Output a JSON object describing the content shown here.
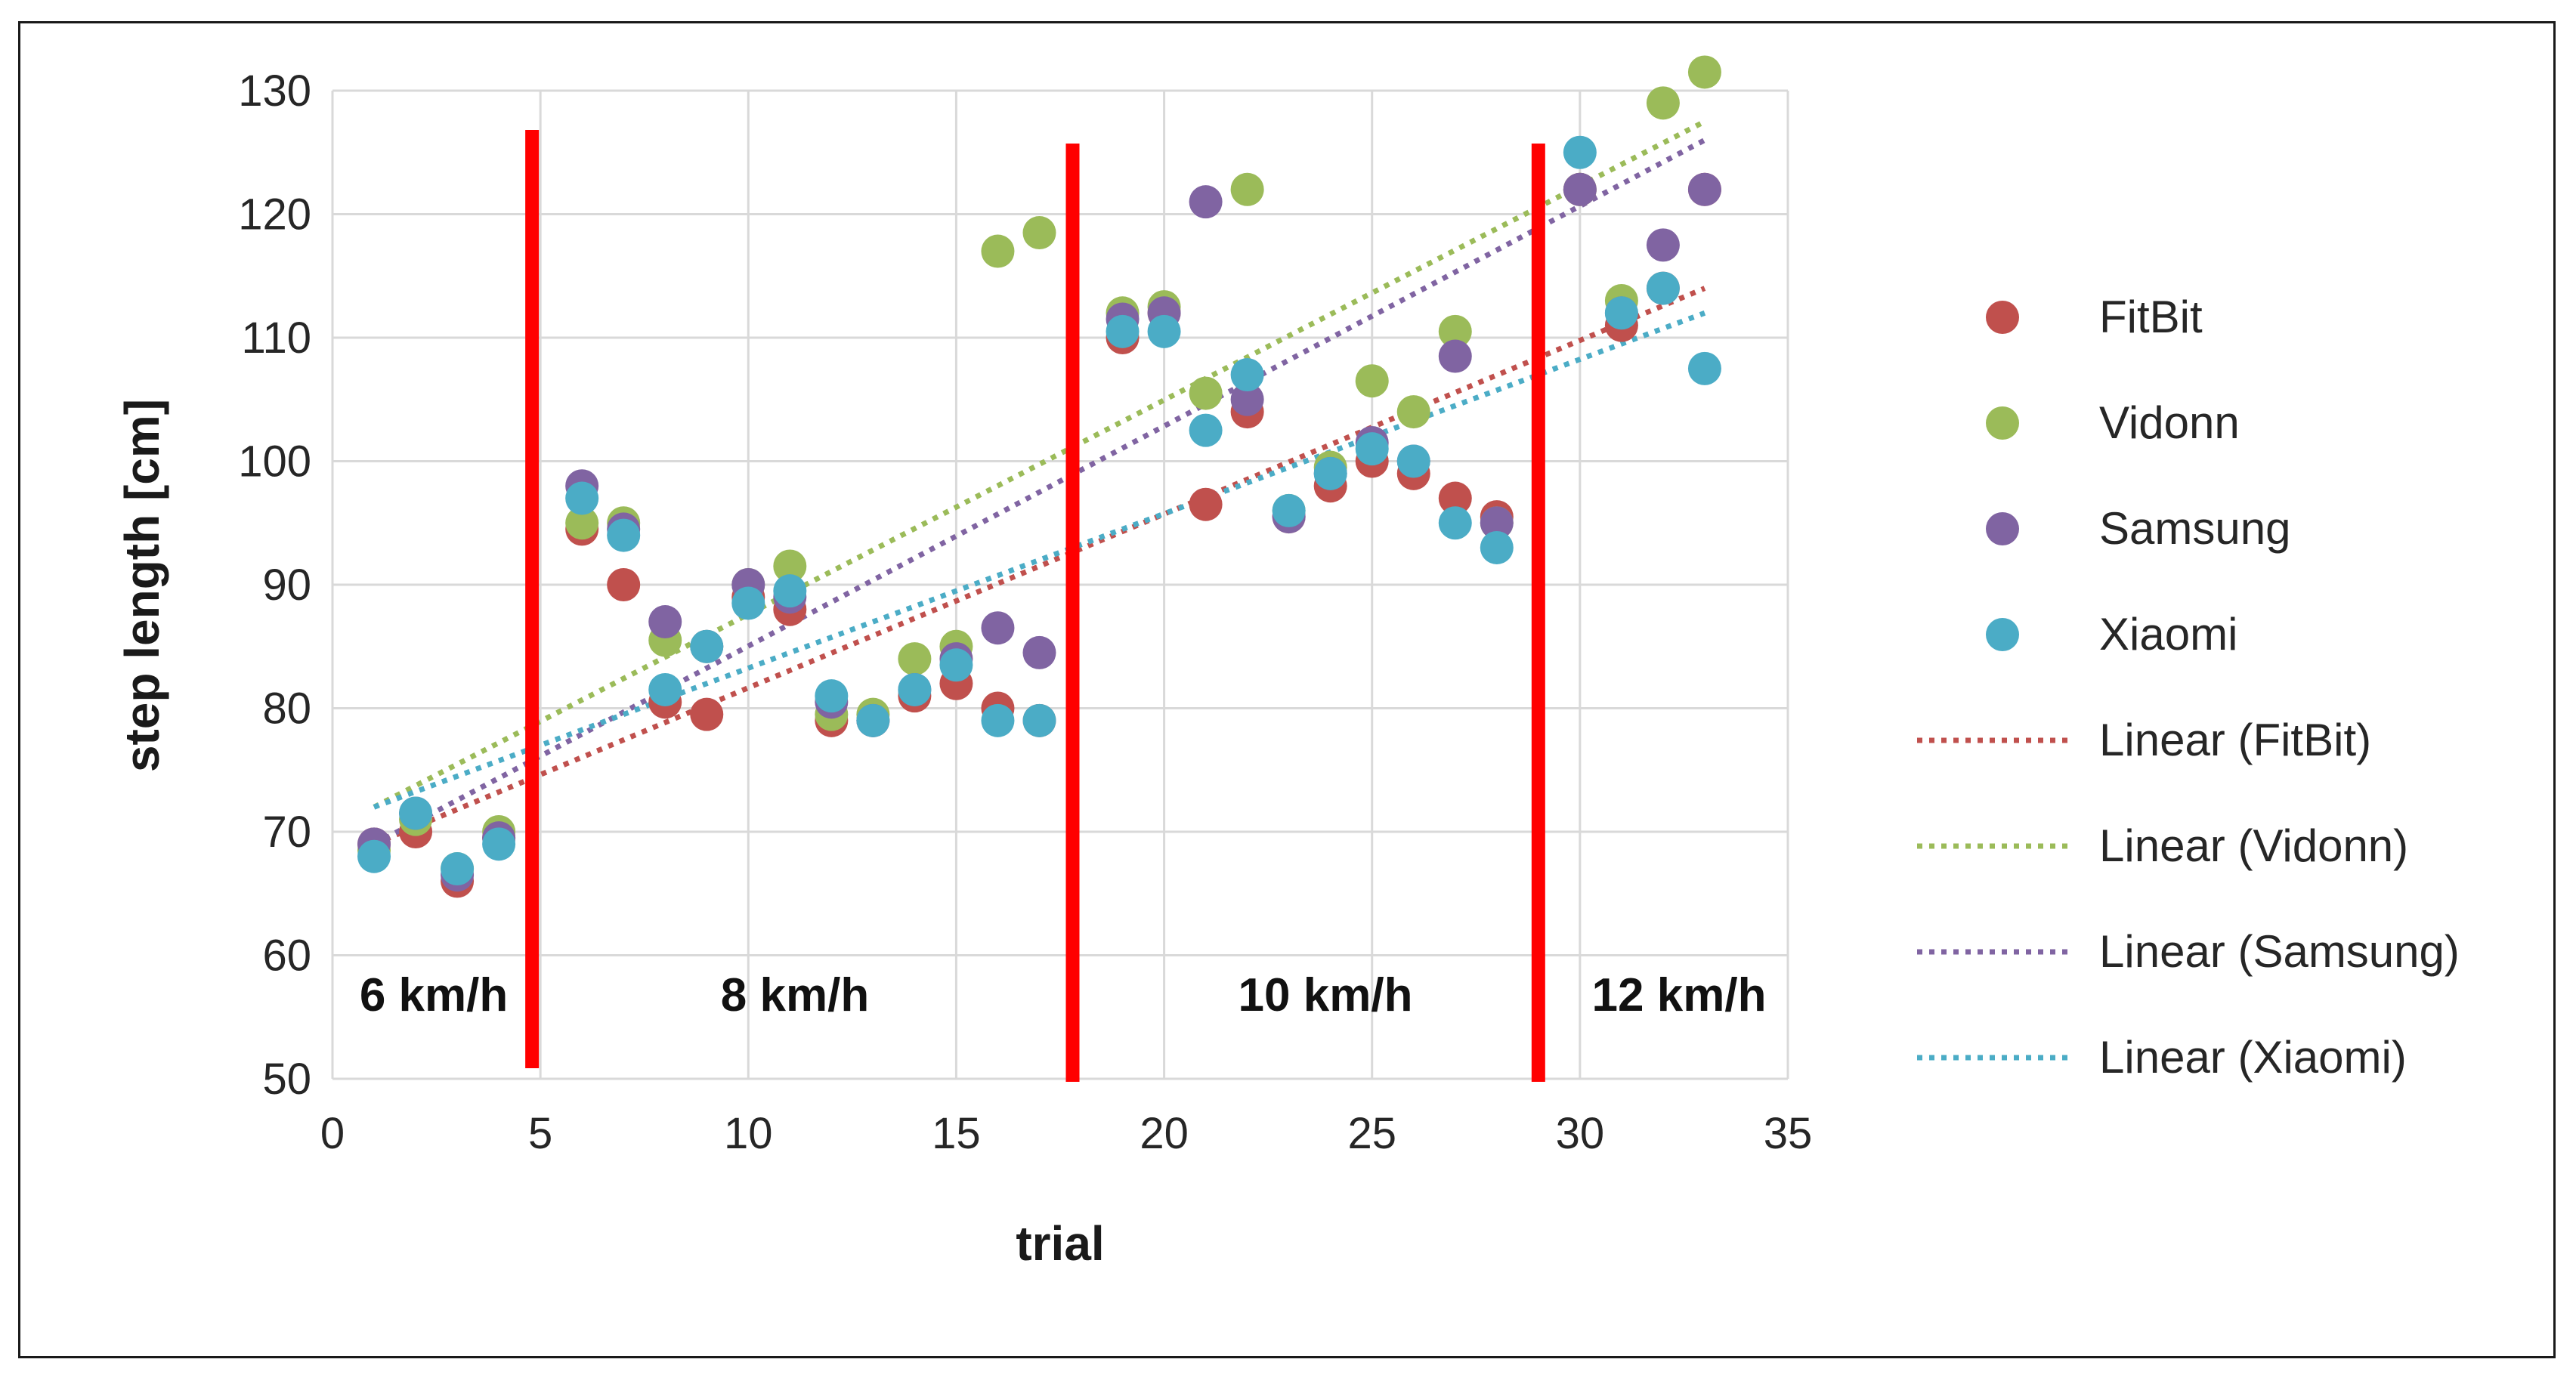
{
  "chart_data": {
    "type": "scatter",
    "xlabel": "trial",
    "ylabel": "step length [cm]",
    "xlim": [
      0,
      35
    ],
    "ylim": [
      50,
      130
    ],
    "xticks": [
      "0",
      "5",
      "10",
      "15",
      "20",
      "25",
      "30",
      "35"
    ],
    "yticks": [
      "50",
      "60",
      "70",
      "80",
      "90",
      "100",
      "110",
      "120",
      "130"
    ],
    "grid": true,
    "legend_position": "right",
    "speed_zones": [
      {
        "label": "6 km/h",
        "x_start": 0,
        "x_end": 4.8
      },
      {
        "label": "8 km/h",
        "x_start": 4.8,
        "x_end": 17.8
      },
      {
        "label": "10 km/h",
        "x_start": 17.8,
        "x_end": 29
      },
      {
        "label": "12 km/h",
        "x_start": 29,
        "x_end": 35
      }
    ],
    "separators": [
      4.8,
      17.8,
      29
    ],
    "separator_color": "#ff0000",
    "series": [
      {
        "name": "FitBit",
        "color": "#c0504d",
        "x": [
          1,
          2,
          3,
          4,
          6,
          7,
          8,
          9,
          10,
          11,
          12,
          13,
          14,
          15,
          16,
          17,
          19,
          20,
          21,
          22,
          23,
          24,
          25,
          26,
          27,
          28,
          30,
          31,
          32,
          33
        ],
        "y": [
          69,
          70,
          66,
          69.5,
          94.5,
          90,
          80.5,
          79.5,
          89,
          88,
          79,
          79,
          81,
          82,
          80,
          79,
          110,
          112,
          96.5,
          104,
          95.5,
          98,
          100,
          99,
          97,
          95.5,
          122,
          111,
          114,
          122
        ]
      },
      {
        "name": "Vidonn",
        "color": "#9bbb59",
        "x": [
          1,
          2,
          3,
          4,
          6,
          7,
          8,
          9,
          10,
          11,
          12,
          13,
          14,
          15,
          16,
          17,
          19,
          20,
          21,
          22,
          23,
          24,
          25,
          26,
          27,
          28,
          30,
          31,
          32,
          33
        ],
        "y": [
          68.5,
          71,
          67,
          70,
          95,
          95,
          85.5,
          85,
          90,
          91.5,
          79.5,
          79.5,
          84,
          85,
          117,
          118.5,
          112,
          112.5,
          105.5,
          122,
          96,
          99.5,
          106.5,
          104,
          110.5,
          95,
          122,
          113,
          129,
          131.5
        ]
      },
      {
        "name": "Samsung",
        "color": "#8064a2",
        "x": [
          1,
          2,
          3,
          4,
          6,
          7,
          8,
          9,
          10,
          11,
          12,
          13,
          14,
          15,
          16,
          17,
          19,
          20,
          21,
          22,
          23,
          24,
          25,
          26,
          27,
          28,
          30,
          31,
          32,
          33
        ],
        "y": [
          69,
          71.5,
          66.5,
          69.5,
          98,
          94.5,
          87,
          85,
          90,
          89,
          80.5,
          79,
          81.5,
          84,
          86.5,
          84.5,
          111.5,
          112,
          121,
          105,
          95.5,
          99,
          101.5,
          100,
          108.5,
          95,
          122,
          112,
          117.5,
          122
        ]
      },
      {
        "name": "Xiaomi",
        "color": "#4bacc6",
        "x": [
          1,
          2,
          3,
          4,
          6,
          7,
          8,
          9,
          10,
          11,
          12,
          13,
          14,
          15,
          16,
          17,
          19,
          20,
          21,
          22,
          23,
          24,
          25,
          26,
          27,
          28,
          30,
          31,
          32,
          33
        ],
        "y": [
          68,
          71.5,
          67,
          69,
          97,
          94,
          81.5,
          85,
          88.5,
          89.5,
          81,
          79,
          81.5,
          83.5,
          79,
          79,
          110.5,
          110.5,
          102.5,
          107,
          96,
          99,
          101,
          100,
          95,
          93,
          125,
          112,
          114,
          107.5
        ]
      }
    ],
    "trendlines": [
      {
        "name": "Linear (FitBit)",
        "color": "#c0504d",
        "x": [
          1,
          33
        ],
        "y": [
          69,
          114
        ]
      },
      {
        "name": "Linear (Vidonn)",
        "color": "#9bbb59",
        "x": [
          1,
          33
        ],
        "y": [
          72,
          127.5
        ]
      },
      {
        "name": "Linear (Samsung)",
        "color": "#8064a2",
        "x": [
          1,
          33
        ],
        "y": [
          69,
          126
        ]
      },
      {
        "name": "Linear (Xiaomi)",
        "color": "#4bacc6",
        "x": [
          1,
          33
        ],
        "y": [
          72,
          112
        ]
      }
    ]
  }
}
